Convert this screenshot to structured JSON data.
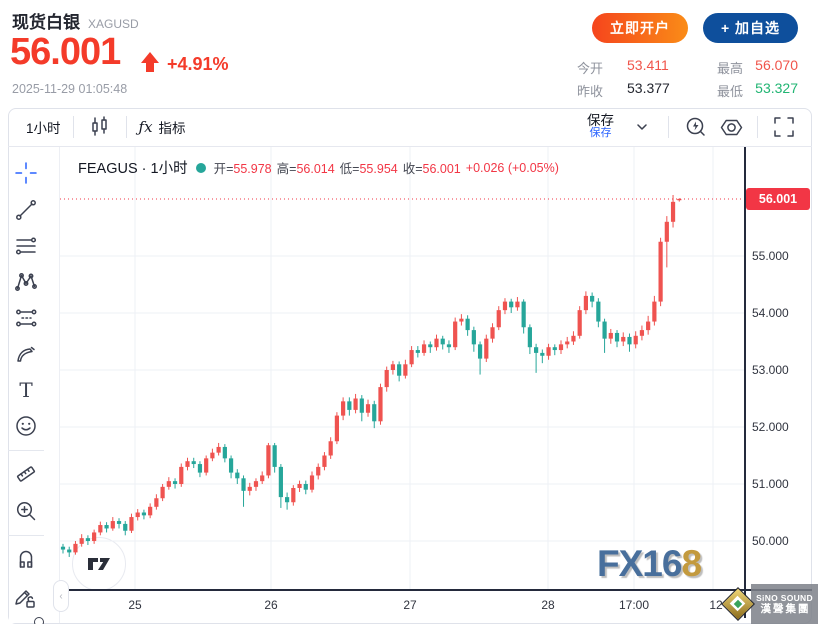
{
  "header": {
    "title": "现货白银",
    "symbol": "XAGUSD",
    "price": "56.001",
    "change_percent": "+4.91%",
    "timestamp": "2025-11-29 01:05:48",
    "open_account_label": "立即开户",
    "add_watchlist_label": "+ 加自选",
    "stats": {
      "open_label": "今开",
      "open_value": "53.411",
      "prev_close_label": "昨收",
      "prev_close_value": "53.377",
      "high_label": "最高",
      "high_value": "56.070",
      "low_label": "最低",
      "low_value": "53.327"
    }
  },
  "toolbar": {
    "interval_label": "1小时",
    "fx_glyph": "ƒx",
    "indicators_label": "指标",
    "save_label": "保存",
    "save_tooltip": "保存"
  },
  "sidebar": {
    "tools": [
      "crosshair",
      "trend-line",
      "horizontal-lines",
      "xabcd-pattern",
      "projection",
      "brush",
      "text",
      "emoji",
      "ruler",
      "zoom-in",
      "magnet",
      "lock-drawings"
    ]
  },
  "chart": {
    "legend": {
      "series_title": "FEAGUS · 1小时",
      "open_label": "开=",
      "open_value": "55.978",
      "high_label": "高=",
      "high_value": "56.014",
      "low_label": "低=",
      "low_value": "55.954",
      "close_label": "收=",
      "close_value": "56.001",
      "change_text": "+0.026 (+0.05%)"
    },
    "price_badge": "56.001",
    "y_axis_labels": [
      "55.000",
      "54.000",
      "53.000",
      "52.000",
      "51.000",
      "50.000"
    ],
    "x_axis_labels": [
      "25",
      "26",
      "27",
      "28",
      "17:00",
      "12"
    ],
    "fx168_blue": "FX16",
    "fx168_gold": "8",
    "sino_line1": "SiNO SOUND",
    "sino_line2": "漢聲集團"
  },
  "chart_data": {
    "type": "candlestick",
    "title": "现货白银 XAGUSD · 1小时",
    "interval": "1小时",
    "up_color": "#ef5350",
    "down_color": "#26a69a",
    "grid": true,
    "last_price": 56.001,
    "last_price_color": "#f23645",
    "ylim": [
      49.1,
      56.9
    ],
    "y_ticks": [
      55,
      54,
      53,
      52,
      51,
      50
    ],
    "x_tick_labels": [
      "25",
      "26",
      "27",
      "28",
      "17:00",
      "12"
    ],
    "candles": [
      [
        49.9,
        49.95,
        49.78,
        49.85
      ],
      [
        49.85,
        49.9,
        49.72,
        49.8
      ],
      [
        49.8,
        50.0,
        49.76,
        49.95
      ],
      [
        49.95,
        50.12,
        49.9,
        50.05
      ],
      [
        50.05,
        50.1,
        49.93,
        50.0
      ],
      [
        50.0,
        50.2,
        49.95,
        50.15
      ],
      [
        50.15,
        50.34,
        50.1,
        50.28
      ],
      [
        50.28,
        50.33,
        50.15,
        50.22
      ],
      [
        50.22,
        50.42,
        50.18,
        50.35
      ],
      [
        50.35,
        50.4,
        50.22,
        50.3
      ],
      [
        50.3,
        50.35,
        50.1,
        50.18
      ],
      [
        50.18,
        50.48,
        50.14,
        50.42
      ],
      [
        50.42,
        50.56,
        50.36,
        50.5
      ],
      [
        50.5,
        50.55,
        50.38,
        50.45
      ],
      [
        50.45,
        50.66,
        50.4,
        50.6
      ],
      [
        50.6,
        50.82,
        50.55,
        50.75
      ],
      [
        50.75,
        51.0,
        50.7,
        50.95
      ],
      [
        50.95,
        51.12,
        50.9,
        51.05
      ],
      [
        51.05,
        51.1,
        50.92,
        51.0
      ],
      [
        51.0,
        51.36,
        50.95,
        51.3
      ],
      [
        51.3,
        51.46,
        51.24,
        51.4
      ],
      [
        51.4,
        51.46,
        51.28,
        51.35
      ],
      [
        51.35,
        51.4,
        51.12,
        51.2
      ],
      [
        51.2,
        51.5,
        51.15,
        51.45
      ],
      [
        51.45,
        51.62,
        51.4,
        51.55
      ],
      [
        51.55,
        51.72,
        51.5,
        51.65
      ],
      [
        51.65,
        51.7,
        51.38,
        51.45
      ],
      [
        51.45,
        51.5,
        51.1,
        51.2
      ],
      [
        51.2,
        51.26,
        51.0,
        51.1
      ],
      [
        51.1,
        51.15,
        50.6,
        50.88
      ],
      [
        50.88,
        51.02,
        50.8,
        50.95
      ],
      [
        50.95,
        51.1,
        50.88,
        51.05
      ],
      [
        51.05,
        51.22,
        51.0,
        51.15
      ],
      [
        51.15,
        51.72,
        51.1,
        51.68
      ],
      [
        51.68,
        51.72,
        51.2,
        51.3
      ],
      [
        51.3,
        51.35,
        50.58,
        50.77
      ],
      [
        50.77,
        50.85,
        50.55,
        50.68
      ],
      [
        50.68,
        50.98,
        50.62,
        50.93
      ],
      [
        50.93,
        51.06,
        50.86,
        51.0
      ],
      [
        51.0,
        51.06,
        50.82,
        50.9
      ],
      [
        50.9,
        51.22,
        50.85,
        51.15
      ],
      [
        51.15,
        51.36,
        51.08,
        51.3
      ],
      [
        51.3,
        51.56,
        51.24,
        51.5
      ],
      [
        51.5,
        51.82,
        51.44,
        51.75
      ],
      [
        51.75,
        52.26,
        51.7,
        52.2
      ],
      [
        52.2,
        52.52,
        52.12,
        52.45
      ],
      [
        52.45,
        52.52,
        52.2,
        52.3
      ],
      [
        52.3,
        52.58,
        52.24,
        52.5
      ],
      [
        52.5,
        52.56,
        52.1,
        52.25
      ],
      [
        52.25,
        52.48,
        52.18,
        52.4
      ],
      [
        52.4,
        52.46,
        51.98,
        52.1
      ],
      [
        52.1,
        52.76,
        52.04,
        52.7
      ],
      [
        52.7,
        53.06,
        52.62,
        53.0
      ],
      [
        53.0,
        53.16,
        52.92,
        53.1
      ],
      [
        53.1,
        53.15,
        52.8,
        52.9
      ],
      [
        52.9,
        53.18,
        52.85,
        53.1
      ],
      [
        53.1,
        53.42,
        53.05,
        53.35
      ],
      [
        53.35,
        53.42,
        53.22,
        53.3
      ],
      [
        53.3,
        53.52,
        53.25,
        53.45
      ],
      [
        53.45,
        53.5,
        53.3,
        53.4
      ],
      [
        53.4,
        53.62,
        53.34,
        53.55
      ],
      [
        53.55,
        53.6,
        53.36,
        53.45
      ],
      [
        53.45,
        53.52,
        53.3,
        53.4
      ],
      [
        53.4,
        53.92,
        53.35,
        53.85
      ],
      [
        53.85,
        53.98,
        53.78,
        53.9
      ],
      [
        53.9,
        53.96,
        53.6,
        53.7
      ],
      [
        53.7,
        53.76,
        53.32,
        53.45
      ],
      [
        53.45,
        53.5,
        52.92,
        53.2
      ],
      [
        53.2,
        53.62,
        53.14,
        53.55
      ],
      [
        53.55,
        53.82,
        53.48,
        53.75
      ],
      [
        53.75,
        54.12,
        53.7,
        54.05
      ],
      [
        54.05,
        54.26,
        53.98,
        54.2
      ],
      [
        54.2,
        54.25,
        54.0,
        54.1
      ],
      [
        54.1,
        54.28,
        54.04,
        54.2
      ],
      [
        54.2,
        54.24,
        53.64,
        53.75
      ],
      [
        53.75,
        53.8,
        53.28,
        53.4
      ],
      [
        53.4,
        53.46,
        52.95,
        53.3
      ],
      [
        53.3,
        53.36,
        53.12,
        53.25
      ],
      [
        53.25,
        53.46,
        53.18,
        53.4
      ],
      [
        53.4,
        53.45,
        53.26,
        53.35
      ],
      [
        53.35,
        53.52,
        53.28,
        53.45
      ],
      [
        53.45,
        53.58,
        53.38,
        53.5
      ],
      [
        53.5,
        53.68,
        53.44,
        53.6
      ],
      [
        53.6,
        54.12,
        53.55,
        54.05
      ],
      [
        54.05,
        54.38,
        53.98,
        54.3
      ],
      [
        54.3,
        54.36,
        54.1,
        54.2
      ],
      [
        54.2,
        54.26,
        53.75,
        53.85
      ],
      [
        53.85,
        53.9,
        53.3,
        53.55
      ],
      [
        53.55,
        53.72,
        53.46,
        53.65
      ],
      [
        53.65,
        53.7,
        53.4,
        53.5
      ],
      [
        53.5,
        53.66,
        53.42,
        53.58
      ],
      [
        53.58,
        53.64,
        53.32,
        53.45
      ],
      [
        53.45,
        53.68,
        53.38,
        53.6
      ],
      [
        53.6,
        53.78,
        53.52,
        53.7
      ],
      [
        53.7,
        53.95,
        53.62,
        53.85
      ],
      [
        53.85,
        54.3,
        53.78,
        54.2
      ],
      [
        54.2,
        55.32,
        54.12,
        55.25
      ],
      [
        55.25,
        55.7,
        54.8,
        55.6
      ],
      [
        55.6,
        56.07,
        55.5,
        55.95
      ],
      [
        55.978,
        56.014,
        55.954,
        56.001
      ]
    ]
  }
}
